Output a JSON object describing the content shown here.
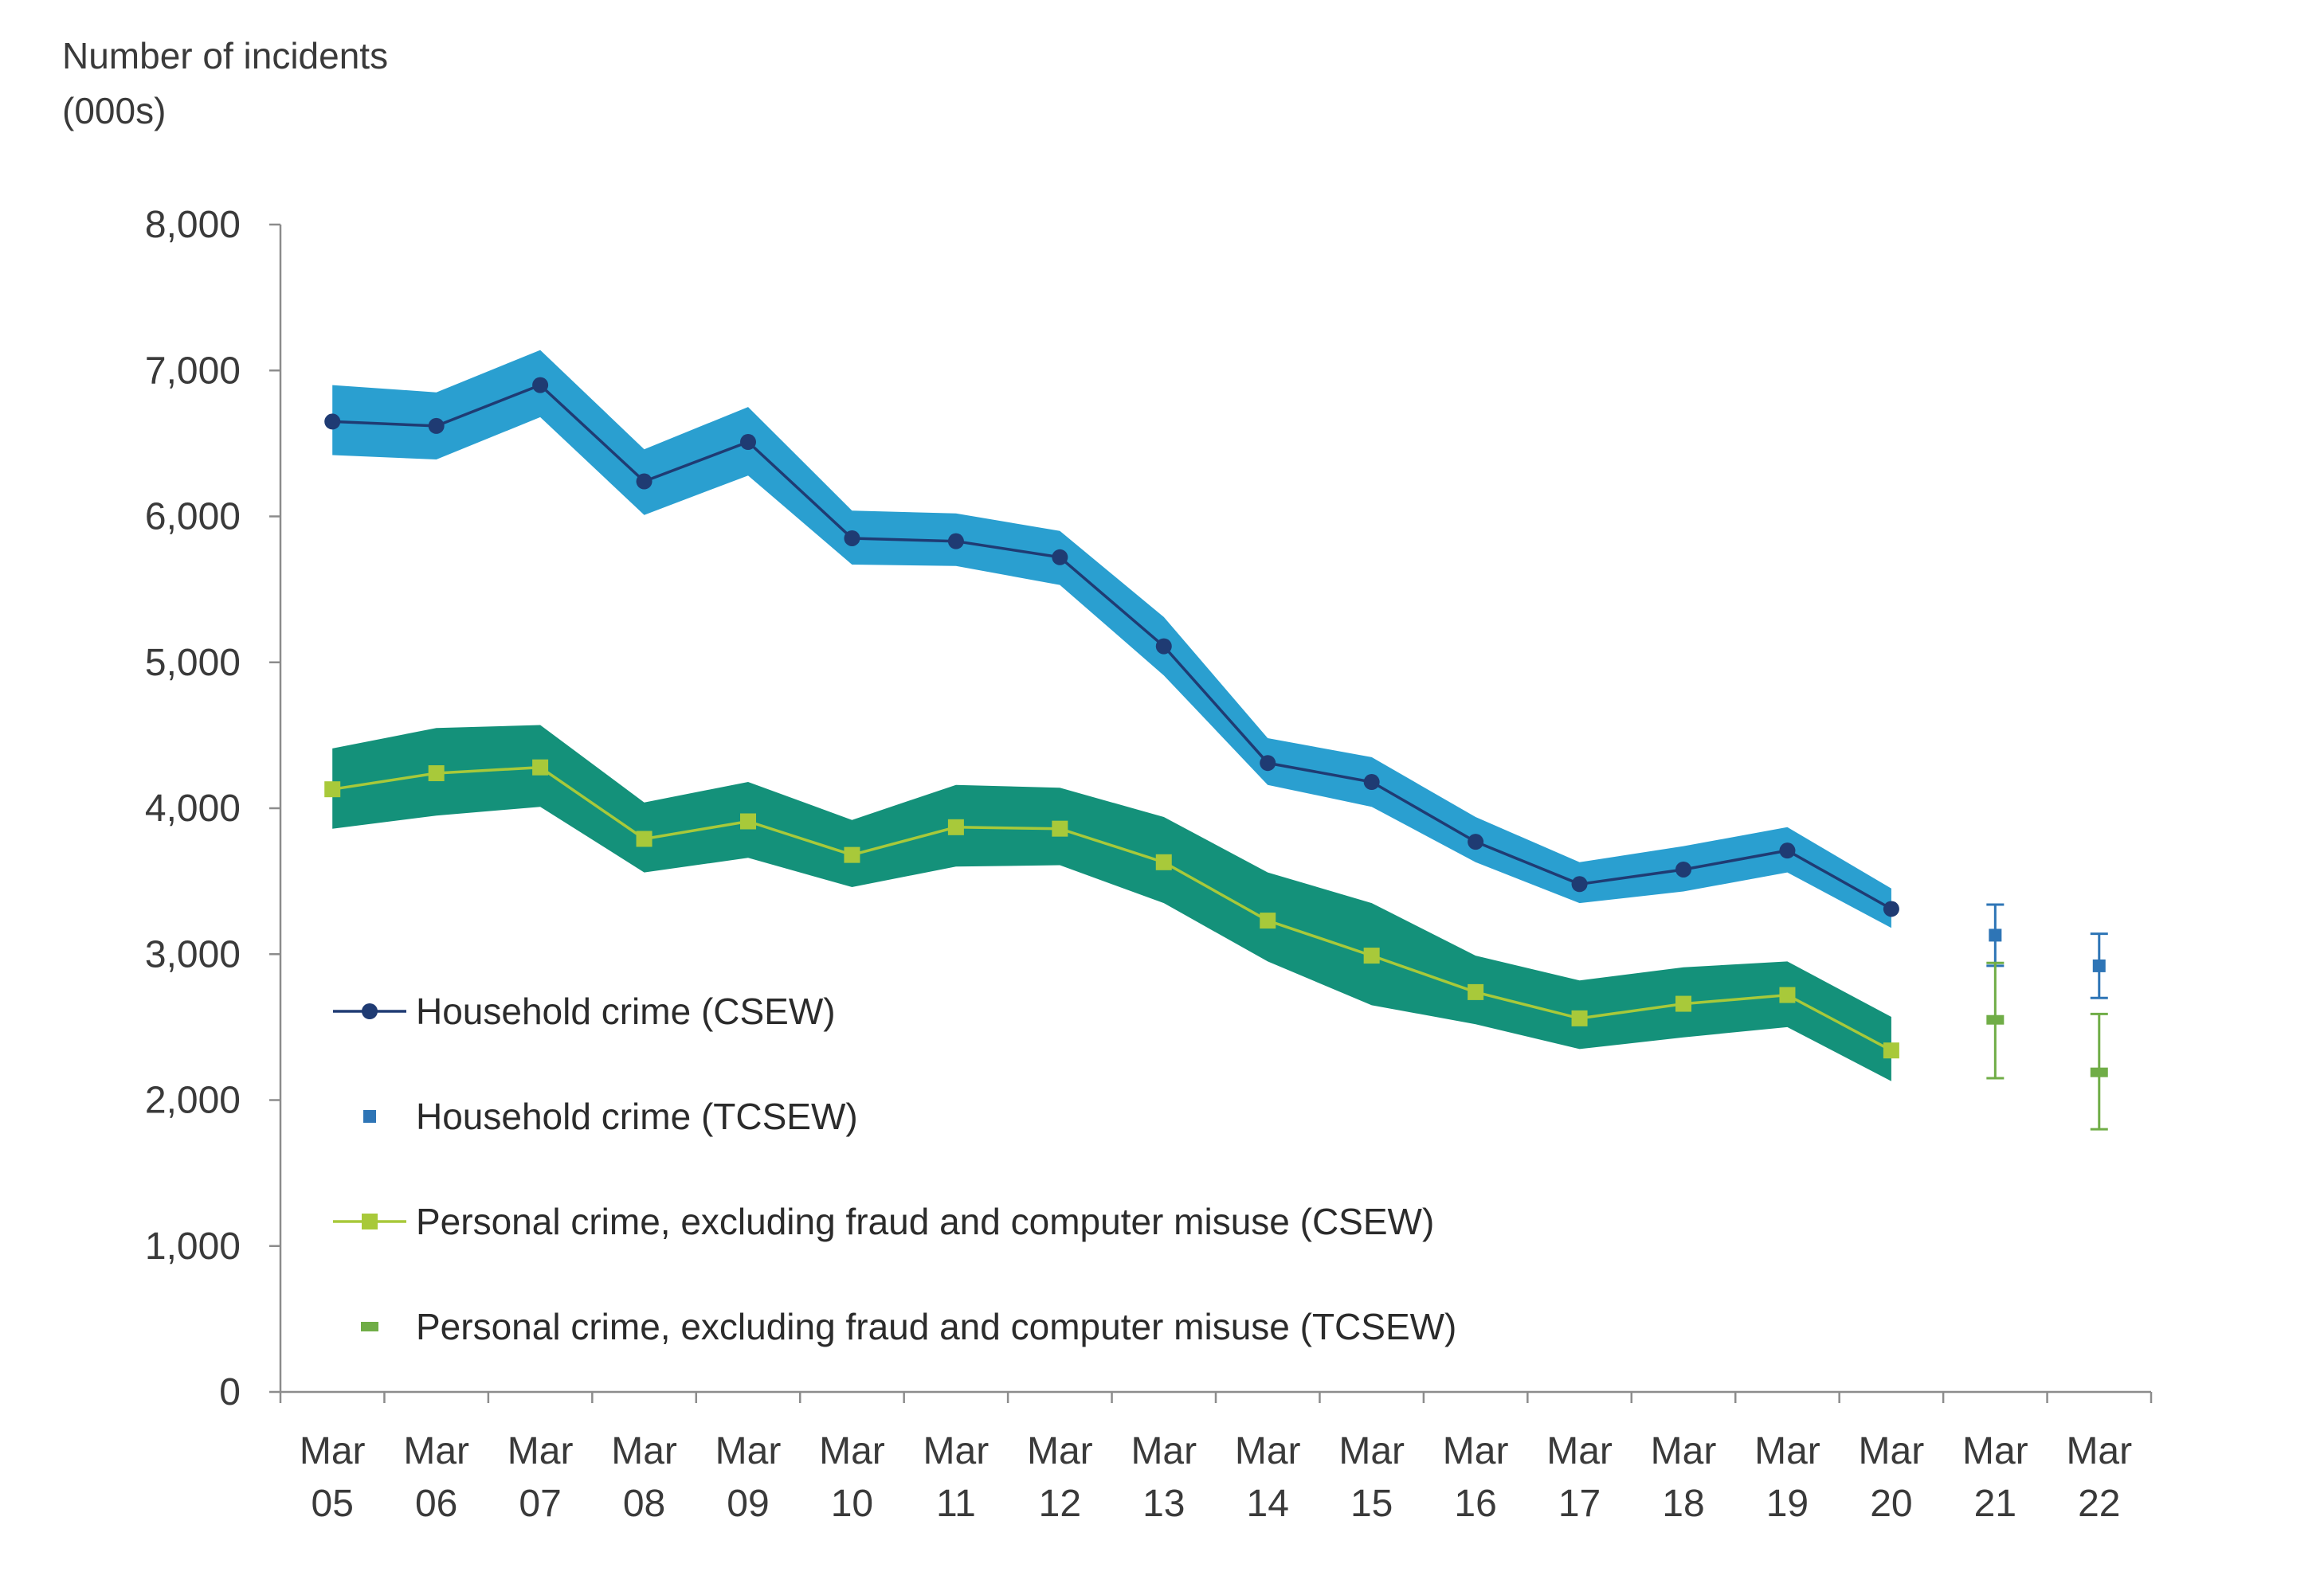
{
  "chart_data": {
    "type": "line",
    "ylabel_lines": [
      "Number of incidents",
      "(000s)"
    ],
    "ylim": [
      0,
      8000
    ],
    "yticks": [
      "0",
      "1,000",
      "2,000",
      "3,000",
      "4,000",
      "5,000",
      "6,000",
      "7,000",
      "8,000"
    ],
    "categories": [
      [
        "Mar",
        "05"
      ],
      [
        "Mar",
        "06"
      ],
      [
        "Mar",
        "07"
      ],
      [
        "Mar",
        "08"
      ],
      [
        "Mar",
        "09"
      ],
      [
        "Mar",
        "10"
      ],
      [
        "Mar",
        "11"
      ],
      [
        "Mar",
        "12"
      ],
      [
        "Mar",
        "13"
      ],
      [
        "Mar",
        "14"
      ],
      [
        "Mar",
        "15"
      ],
      [
        "Mar",
        "16"
      ],
      [
        "Mar",
        "17"
      ],
      [
        "Mar",
        "18"
      ],
      [
        "Mar",
        "19"
      ],
      [
        "Mar",
        "20"
      ],
      [
        "Mar",
        "21"
      ],
      [
        "Mar",
        "22"
      ]
    ],
    "grid": false,
    "legend_position": "bottom-left inside plot",
    "series": [
      {
        "name": "Household crime (CSEW)",
        "kind": "line-circle-with-band",
        "color": "#1f3b73",
        "band_color": "#2a9fd0",
        "values": [
          6650,
          6620,
          6900,
          6240,
          6510,
          5850,
          5830,
          5720,
          5110,
          4310,
          4180,
          3770,
          3480,
          3580,
          3710,
          3310,
          null,
          null
        ],
        "lower": [
          6420,
          6390,
          6680,
          6010,
          6280,
          5670,
          5660,
          5530,
          4910,
          4160,
          4010,
          3630,
          3350,
          3430,
          3560,
          3180,
          null,
          null
        ],
        "upper": [
          6900,
          6850,
          7140,
          6460,
          6750,
          6040,
          6020,
          5900,
          5310,
          4480,
          4350,
          3940,
          3630,
          3740,
          3870,
          3450,
          null,
          null
        ]
      },
      {
        "name": "Household crime (TCSEW)",
        "kind": "point-square-errorbar",
        "color": "#2e75b6",
        "values": [
          null,
          null,
          null,
          null,
          null,
          null,
          null,
          null,
          null,
          null,
          null,
          null,
          null,
          null,
          null,
          null,
          3130,
          2920
        ],
        "lower": [
          null,
          null,
          null,
          null,
          null,
          null,
          null,
          null,
          null,
          null,
          null,
          null,
          null,
          null,
          null,
          null,
          2920,
          2700
        ],
        "upper": [
          null,
          null,
          null,
          null,
          null,
          null,
          null,
          null,
          null,
          null,
          null,
          null,
          null,
          null,
          null,
          null,
          3340,
          3140
        ]
      },
      {
        "name": "Personal crime, excluding fraud and computer misuse (CSEW)",
        "kind": "line-square-with-band",
        "color": "#a8c93a",
        "band_color": "#14917a",
        "values": [
          4130,
          4240,
          4280,
          3790,
          3910,
          3680,
          3870,
          3860,
          3630,
          3230,
          2990,
          2740,
          2560,
          2660,
          2720,
          2340,
          null,
          null
        ],
        "lower": [
          3860,
          3950,
          4010,
          3560,
          3660,
          3460,
          3600,
          3610,
          3350,
          2950,
          2650,
          2520,
          2350,
          2430,
          2500,
          2130,
          null,
          null
        ],
        "upper": [
          4410,
          4550,
          4570,
          4040,
          4180,
          3920,
          4160,
          4140,
          3940,
          3560,
          3350,
          2990,
          2820,
          2910,
          2950,
          2570,
          null,
          null
        ]
      },
      {
        "name": "Personal crime, excluding fraud and computer misuse (TCSEW)",
        "kind": "point-dash-errorbar",
        "color": "#70ad47",
        "values": [
          null,
          null,
          null,
          null,
          null,
          null,
          null,
          null,
          null,
          null,
          null,
          null,
          null,
          null,
          null,
          null,
          2550,
          2190
        ],
        "lower": [
          null,
          null,
          null,
          null,
          null,
          null,
          null,
          null,
          null,
          null,
          null,
          null,
          null,
          null,
          null,
          null,
          2150,
          1800
        ],
        "upper": [
          null,
          null,
          null,
          null,
          null,
          null,
          null,
          null,
          null,
          null,
          null,
          null,
          null,
          null,
          null,
          null,
          2940,
          2590
        ]
      }
    ]
  }
}
